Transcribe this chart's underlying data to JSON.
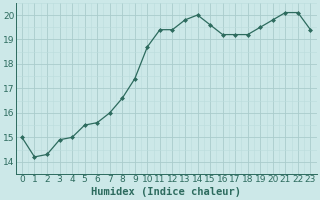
{
  "x": [
    0,
    1,
    2,
    3,
    4,
    5,
    6,
    7,
    8,
    9,
    10,
    11,
    12,
    13,
    14,
    15,
    16,
    17,
    18,
    19,
    20,
    21,
    22,
    23
  ],
  "y": [
    15.0,
    14.2,
    14.3,
    14.9,
    15.0,
    15.5,
    15.6,
    16.0,
    16.6,
    17.4,
    18.7,
    19.4,
    19.4,
    19.8,
    20.0,
    19.6,
    19.2,
    19.2,
    19.2,
    19.5,
    19.8,
    20.1,
    20.1,
    19.4
  ],
  "line_color": "#2d6b5e",
  "marker": "D",
  "marker_size": 2.0,
  "bg_color": "#cce8e8",
  "grid_major_color": "#aacccc",
  "grid_minor_color": "#bbdddd",
  "xlabel": "Humidex (Indice chaleur)",
  "xlim": [
    -0.5,
    23.5
  ],
  "ylim": [
    13.8,
    20.5
  ],
  "yticks": [
    14,
    15,
    16,
    17,
    18,
    19,
    20
  ],
  "xticks": [
    0,
    1,
    2,
    3,
    4,
    5,
    6,
    7,
    8,
    9,
    10,
    11,
    12,
    13,
    14,
    15,
    16,
    17,
    18,
    19,
    20,
    21,
    22,
    23
  ],
  "xlabel_fontsize": 7.5,
  "tick_fontsize": 6.5,
  "linewidth": 0.9
}
